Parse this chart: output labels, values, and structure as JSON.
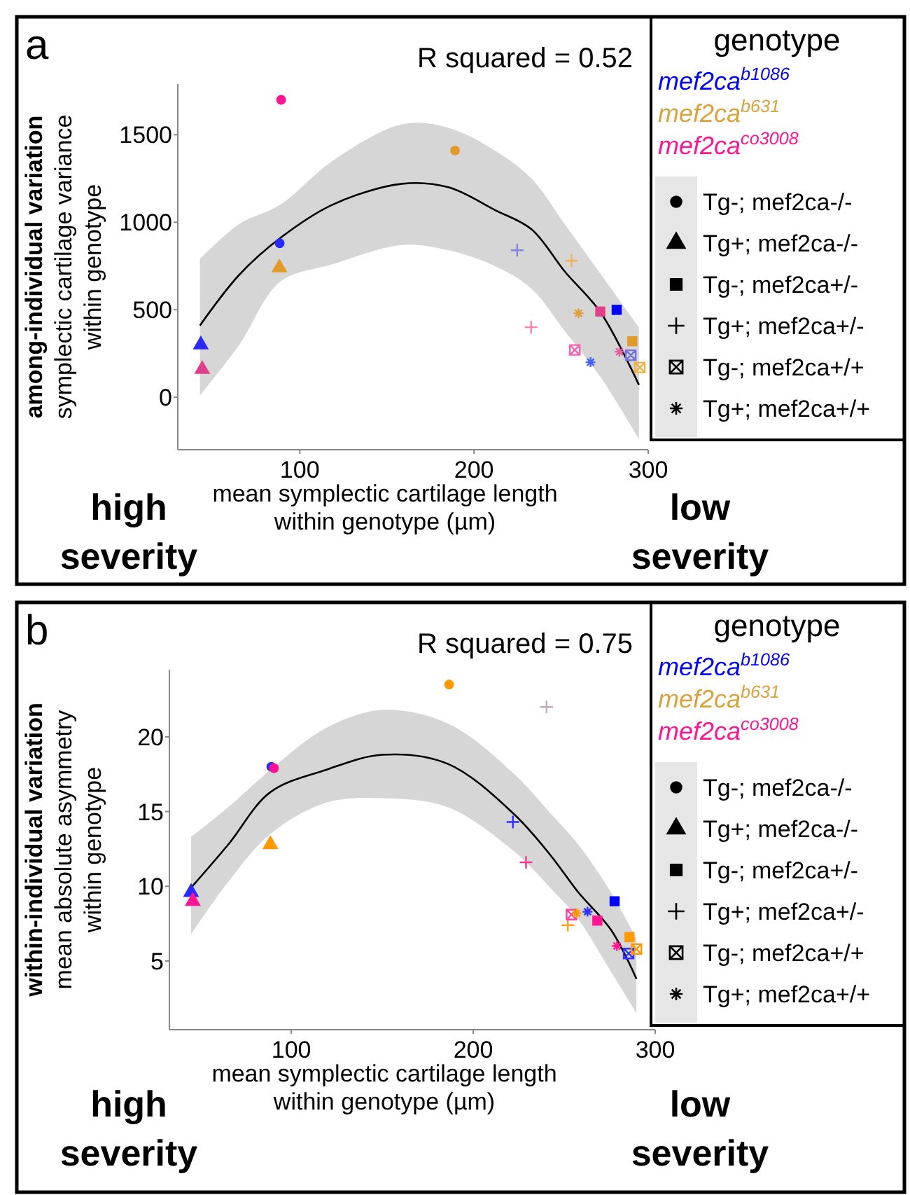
{
  "chart_data": [
    {
      "type": "scatter",
      "title": "a",
      "xlabel": "mean symplectic cartilage length\nwithin genotype (µm)",
      "ylabel": "among-individual variation\nsymplectic cartilage variance\nwithin genotype",
      "legend_title": "genotype",
      "xlim": [
        30,
        300
      ],
      "ylim": [
        -300,
        1790
      ],
      "xticks": [
        100,
        200,
        300
      ],
      "yticks": [
        0,
        500,
        1000,
        1500
      ],
      "annotations": [
        "R squared = 0.52",
        "high severity",
        "low severity",
        "Tg-; mef2ca-/-",
        "Tg+; mef2ca-/-",
        "Tg-; mef2ca+/-",
        "Tg+; mef2ca+/-",
        "Tg-; mef2ca+/+",
        "Tg+; mef2ca+/+"
      ],
      "series": [
        {
          "name": "mef2ca$^{b1086}$",
          "color": "#0000ff"
        },
        {
          "name": "mef2ca$^{b631}$",
          "color": "#d9a23c"
        },
        {
          "name": "mef2ca$^{co3008}$",
          "color": "#ff1493"
        },
        {
          "marker": "circle",
          "color": "#000000",
          "x": [
            89.3,
            189.1,
            88.5
          ],
          "values": [
            1700,
            1410,
            880
          ],
          "colors": [
            "#ff1493",
            "#e39a2a",
            "#2a2aff"
          ]
        },
        {
          "marker": "triangle",
          "color": "#000000",
          "x": [
            88.3,
            43.2,
            44
          ],
          "values": [
            740,
            300,
            160
          ],
          "colors": [
            "#e39a2a",
            "#2a2aff",
            "#e0408a"
          ]
        },
        {
          "marker": "square",
          "color": "#000000",
          "x": [
            272.5,
            281.9,
            290.9
          ],
          "values": [
            490,
            500,
            320
          ],
          "colors": [
            "#e0408a",
            "#0000ff",
            "#e39a2a"
          ]
        },
        {
          "marker": "cross",
          "color": "#000000",
          "x": [
            224.8,
            256,
            232.8
          ],
          "values": [
            840,
            780,
            400
          ],
          "colors": [
            "#8080e0",
            "#f0b060",
            "#ff80b0"
          ]
        },
        {
          "color": "#000000",
          "x": [
            257.9,
            290,
            295.2
          ],
          "values": [
            270,
            240,
            170
          ],
          "colors": [
            "#ff60b0",
            "#7070e0",
            "#f0b040"
          ]
        },
        {
          "color": "#000000",
          "x": [
            266.9,
            283.5,
            260
          ],
          "values": [
            200,
            260,
            480
          ],
          "colors": [
            "#4060ff",
            "#e060a0",
            "#e0a040"
          ]
        },
        {
          "type": "line",
          "color": "#000000",
          "x": [
            42.7,
            65.3,
            88.8,
            118.7,
            158.7,
            185.3,
            212,
            233,
            252,
            273,
            294.7
          ],
          "values": [
            410,
            700,
            910,
            1100,
            1220,
            1200,
            1070,
            960,
            720,
            480,
            70
          ],
          "lower": [
            10,
            300,
            660,
            760,
            870,
            840,
            750,
            620,
            380,
            110,
            -240
          ],
          "upper": [
            790,
            990,
            1100,
            1350,
            1560,
            1540,
            1410,
            1250,
            990,
            700,
            400
          ]
        }
      ]
    },
    {
      "type": "scatter",
      "title": "b",
      "xlabel": "mean symplectic cartilage length\nwithin genotype (µm)",
      "ylabel": "within-individual variation\nmean absolute asymmetry\nwithin genotype",
      "legend_title": "genotype",
      "xlim": [
        33,
        300
      ],
      "ylim": [
        0.4,
        24.5
      ],
      "xticks": [
        100,
        200,
        300
      ],
      "yticks": [
        5,
        10,
        15,
        20
      ],
      "annotations": [
        "R squared = 0.75",
        "high severity",
        "low severity",
        "Tg-; mef2ca-/-",
        "Tg+; mef2ca-/-",
        "Tg-; mef2ca+/-",
        "Tg+; mef2ca+/-",
        "Tg-; mef2ca+/+",
        "Tg+; mef2ca+/+"
      ],
      "series": [
        {
          "name": "mef2ca$^{b1086}$",
          "color": "#0000ff"
        },
        {
          "name": "mef2ca$^{b631}$",
          "color": "#d9a23c"
        },
        {
          "name": "mef2ca$^{co3008}$",
          "color": "#ff1493"
        },
        {
          "marker": "circle",
          "color": "#000000",
          "x": [
            186.7,
            89,
            90.5
          ],
          "values": [
            23.5,
            18,
            17.9
          ],
          "colors": [
            "#ff9900",
            "#2a2aff",
            "#ff1493"
          ]
        },
        {
          "marker": "triangle",
          "color": "#000000",
          "x": [
            88.5,
            44.9,
            45.9
          ],
          "values": [
            12.8,
            9.6,
            9
          ],
          "colors": [
            "#ff9900",
            "#2a2aff",
            "#ff1493"
          ]
        },
        {
          "marker": "square",
          "color": "#000000",
          "x": [
            277.7,
            268.2,
            285.9
          ],
          "values": [
            9,
            7.7,
            6.6
          ],
          "colors": [
            "#0000ff",
            "#ff1493",
            "#ff9900"
          ]
        },
        {
          "marker": "cross",
          "color": "#000000",
          "x": [
            221.8,
            229,
            252,
            240.3
          ],
          "values": [
            14.3,
            11.6,
            7.4,
            22
          ],
          "colors": [
            "#3030ff",
            "#ff3090",
            "#ffa020",
            "#c8a8b8"
          ]
        },
        {
          "color": "#000000",
          "x": [
            254,
            285.4,
            289.7
          ],
          "values": [
            8.1,
            5.5,
            5.8
          ],
          "colors": [
            "#ff40a0",
            "#3030ff",
            "#ff9900"
          ]
        },
        {
          "color": "#000000",
          "x": [
            262.8,
            279,
            256.7
          ],
          "values": [
            8.3,
            6,
            8.2
          ],
          "colors": [
            "#3030ff",
            "#ff1493",
            "#ff9900"
          ]
        },
        {
          "type": "line",
          "color": "#000000",
          "x": [
            44.9,
            65.4,
            88.5,
            119.2,
            150,
            185.9,
            221.8,
            242.3,
            257.7,
            275.6,
            289.7
          ],
          "values": [
            9.9,
            12.8,
            16.3,
            17.8,
            18.8,
            18.2,
            14.9,
            12.1,
            9.6,
            7.1,
            3.8
          ],
          "lower": [
            6.8,
            10.3,
            13.5,
            15.6,
            15.9,
            15.3,
            12.4,
            9.9,
            7.8,
            4.3,
            1.5
          ],
          "upper": [
            13.3,
            15.3,
            17.8,
            20.6,
            21.8,
            20.9,
            17.6,
            14.9,
            12.8,
            9.6,
            6.5
          ]
        }
      ]
    }
  ]
}
